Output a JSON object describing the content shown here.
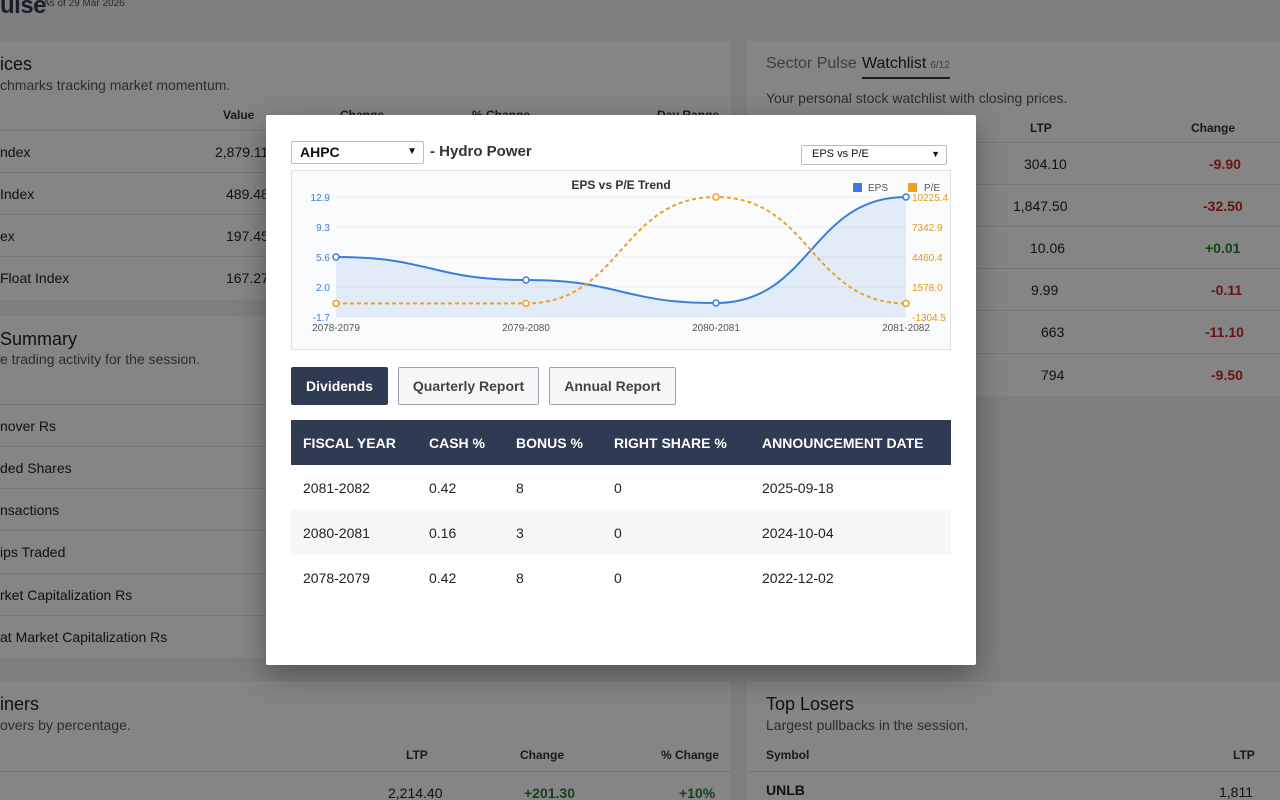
{
  "app": {
    "brand": "ulse",
    "as_of": "As of 29 Mar 2026"
  },
  "indices": {
    "title": "ices",
    "subtitle": "chmarks tracking market momentum.",
    "headers": [
      "Value",
      "Change",
      "% Change",
      "Day Range"
    ],
    "rows": [
      {
        "name": "ndex",
        "value": "2,879.11"
      },
      {
        "name": " Index",
        "value": "489.48"
      },
      {
        "name": "ex",
        "value": "197.45"
      },
      {
        "name": " Float Index",
        "value": "167.27"
      }
    ]
  },
  "summary": {
    "title": " Summary",
    "subtitle": "e trading activity for the session.",
    "rows": [
      "nover Rs",
      "ded Shares",
      "nsactions",
      "ips Traded",
      "rket Capitalization Rs",
      "at Market Capitalization Rs"
    ]
  },
  "gainers": {
    "title": "iners",
    "subtitle": "overs by percentage.",
    "headers": [
      "LTP",
      "Change",
      "% Change"
    ],
    "rows": [
      {
        "ltp": "2,214.40",
        "change": "+201.30",
        "pct": "+10%"
      }
    ]
  },
  "watchlist": {
    "tabs": [
      {
        "label": "Sector Pulse"
      },
      {
        "label": "Watchlist",
        "count": "6/12"
      }
    ],
    "subtitle": "Your personal stock watchlist with closing prices.",
    "headers": [
      "LTP",
      "Change"
    ],
    "rows": [
      {
        "ltp": "304.10",
        "change": "-9.90",
        "dir": "neg"
      },
      {
        "ltp": "1,847.50",
        "change": "-32.50",
        "dir": "neg"
      },
      {
        "ltp": "10.06",
        "change": "+0.01",
        "dir": "pos"
      },
      {
        "ltp": "9.99",
        "change": "-0.11",
        "dir": "neg"
      },
      {
        "ltp": "663",
        "change": "-11.10",
        "dir": "neg"
      },
      {
        "ltp": "794",
        "change": "-9.50",
        "dir": "neg"
      }
    ]
  },
  "losers": {
    "title": "Top Losers",
    "subtitle": "Largest pullbacks in the session.",
    "headers": [
      "Symbol",
      "LTP"
    ],
    "rows": [
      {
        "symbol": "UNLB",
        "ltp": "1,811"
      }
    ]
  },
  "modal": {
    "stock": "AHPC",
    "sector": "- Hydro Power",
    "chart_option": "EPS vs P/E",
    "tabs": [
      "Dividends",
      "Quarterly Report",
      "Annual Report"
    ],
    "active_tab": "Dividends",
    "table": {
      "headers": [
        "FISCAL YEAR",
        "CASH %",
        "BONUS %",
        "RIGHT SHARE %",
        "ANNOUNCEMENT DATE"
      ],
      "rows": [
        [
          "2081-2082",
          "0.42",
          "8",
          "0",
          "2025-09-18"
        ],
        [
          "2080-2081",
          "0.16",
          "3",
          "0",
          "2024-10-04"
        ],
        [
          "2078-2079",
          "0.42",
          "8",
          "0",
          "2022-12-02"
        ]
      ]
    }
  },
  "chart_data": {
    "type": "line",
    "title": "EPS vs P/E Trend",
    "categories": [
      "2078-2079",
      "2079-2080",
      "2080-2081",
      "2081-2082"
    ],
    "series": [
      {
        "name": "EPS",
        "values": [
          5.6,
          2.8,
          0.0,
          12.9
        ],
        "color": "#3b7ddd",
        "axis": "left",
        "style": "solid-area"
      },
      {
        "name": "P/E",
        "values": [
          0,
          0,
          10225.4,
          0
        ],
        "color": "#f0a020",
        "axis": "right",
        "style": "dashed"
      }
    ],
    "yleft_ticks": [
      "12.9",
      "9.3",
      "5.6",
      "2.0",
      "-1.7"
    ],
    "yright_ticks": [
      "10225.4",
      "7342.9",
      "4460.4",
      "1578.0",
      "-1304.5"
    ],
    "yleft_lim": [
      -1.7,
      12.9
    ],
    "yright_lim": [
      -1304.5,
      10225.4
    ],
    "legend": "top-right"
  }
}
